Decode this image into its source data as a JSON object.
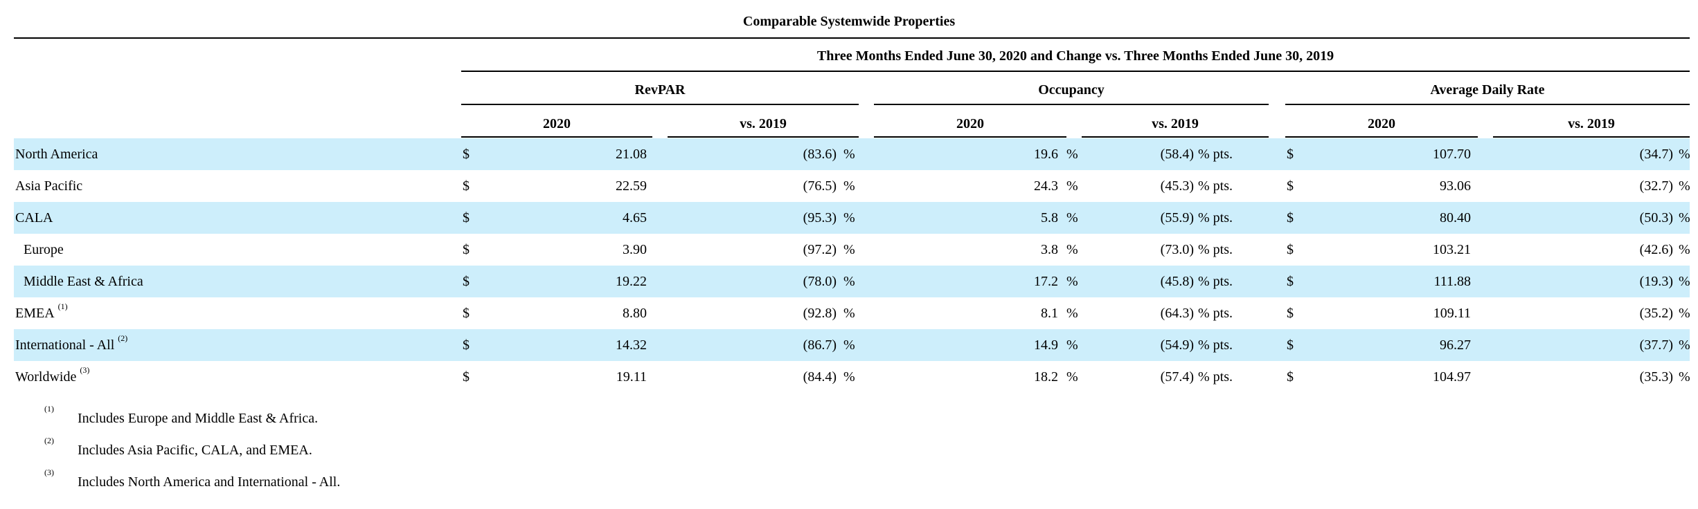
{
  "title": "Comparable Systemwide Properties",
  "period_header": "Three Months Ended June 30, 2020 and Change vs. Three Months Ended June 30, 2019",
  "groups": [
    "RevPAR",
    "Occupancy",
    "Average Daily Rate"
  ],
  "subheaders": [
    "2020",
    "vs. 2019",
    "2020",
    "vs. 2019",
    "2020",
    "vs. 2019"
  ],
  "currency_symbol": "$",
  "percent_symbol": "%",
  "pts_symbol": "% pts.",
  "rows": [
    {
      "label": "North America",
      "sup": "",
      "revpar": "21.08",
      "revpar_chg": "(83.6)",
      "occ": "19.6",
      "occ_chg": "(58.4)",
      "adr": "107.70",
      "adr_chg": "(34.7)"
    },
    {
      "label": "Asia Pacific",
      "sup": "",
      "revpar": "22.59",
      "revpar_chg": "(76.5)",
      "occ": "24.3",
      "occ_chg": "(45.3)",
      "adr": "93.06",
      "adr_chg": "(32.7)"
    },
    {
      "label": "CALA",
      "sup": "",
      "revpar": "4.65",
      "revpar_chg": "(95.3)",
      "occ": "5.8",
      "occ_chg": "(55.9)",
      "adr": "80.40",
      "adr_chg": "(50.3)"
    },
    {
      "label": "Europe",
      "sup": "",
      "revpar": "3.90",
      "revpar_chg": "(97.2)",
      "occ": "3.8",
      "occ_chg": "(73.0)",
      "adr": "103.21",
      "adr_chg": "(42.6)"
    },
    {
      "label": "Middle East & Africa",
      "sup": "",
      "revpar": "19.22",
      "revpar_chg": "(78.0)",
      "occ": "17.2",
      "occ_chg": "(45.8)",
      "adr": "111.88",
      "adr_chg": "(19.3)"
    },
    {
      "label": "EMEA",
      "sup": "(1)",
      "revpar": "8.80",
      "revpar_chg": "(92.8)",
      "occ": "8.1",
      "occ_chg": "(64.3)",
      "adr": "109.11",
      "adr_chg": "(35.2)"
    },
    {
      "label": "International - All",
      "sup": "(2)",
      "revpar": "14.32",
      "revpar_chg": "(86.7)",
      "occ": "14.9",
      "occ_chg": "(54.9)",
      "adr": "96.27",
      "adr_chg": "(37.7)"
    },
    {
      "label": "Worldwide",
      "sup": "(3)",
      "revpar": "19.11",
      "revpar_chg": "(84.4)",
      "occ": "18.2",
      "occ_chg": "(57.4)",
      "adr": "104.97",
      "adr_chg": "(35.3)"
    }
  ],
  "footnotes": [
    {
      "mark": "(1)",
      "text": "Includes Europe and Middle East & Africa."
    },
    {
      "mark": "(2)",
      "text": "Includes Asia Pacific, CALA, and EMEA."
    },
    {
      "mark": "(3)",
      "text": "Includes North America and International - All."
    }
  ]
}
